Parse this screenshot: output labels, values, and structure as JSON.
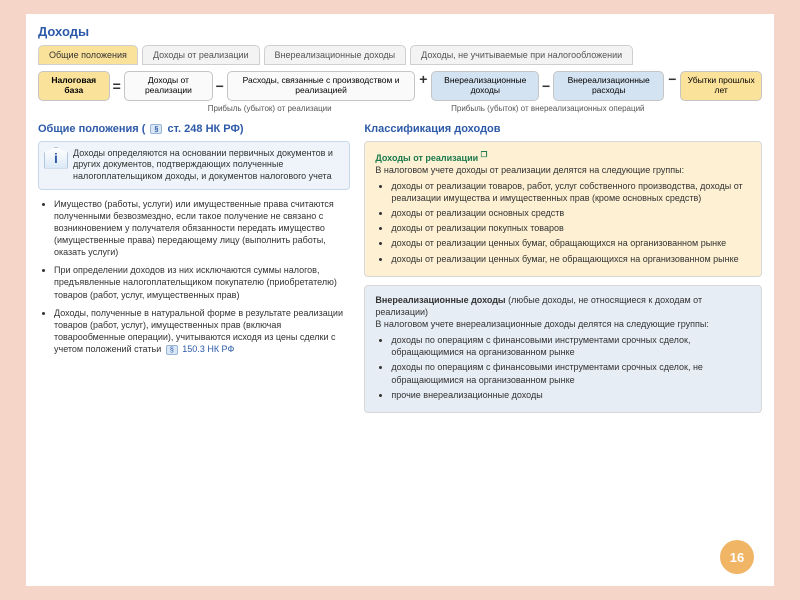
{
  "colors": {
    "page_bg": "#f5d5c8",
    "accent_blue": "#2d5aa8",
    "accent_green": "#1a7a4d",
    "tab_active_bg": "#fbe29a",
    "box_yellow": "#fbe29a",
    "box_blue": "#d4e3f2",
    "panel_yellow": "#fdf0d3",
    "panel_blue": "#e6edf5",
    "badge_bg": "#f0b565"
  },
  "title": "Доходы",
  "tabs": [
    "Общие положения",
    "Доходы от реализации",
    "Внереализационные доходы",
    "Доходы, не учитываемые при налогообложении"
  ],
  "formula": {
    "base": "Налоговая база",
    "eq": "=",
    "g1_a": "Доходы от реализации",
    "minus": "−",
    "g1_b": "Расходы, связанные с производством и реализацией",
    "g1_cap": "Прибыль (убыток) от реализации",
    "plus": "+",
    "g2_a": "Внереализационные доходы",
    "g2_b": "Внереализационные расходы",
    "g2_cap": "Прибыль (убыток) от внереализационных операций",
    "g3": "Убытки прошлых лет"
  },
  "left": {
    "heading_a": "Общие положения ( ",
    "heading_ref": "ст. 248 НК РФ",
    "heading_b": ")",
    "info": "Доходы определяются на основании первичных документов и других документов, подтверждающих полученные налогоплательщиком доходы, и документов налогового учета",
    "bullets": [
      "Имущество (работы, услуги) или имущественные права считаются полученными безвозмездно, если такое получение не связано с возникновением у получателя обязанности передать имущество (имущественные права) передающему лицу (выполнить работы, оказать услуги)",
      "При определении доходов из них исключаются суммы налогов, предъявленные налогоплательщиком покупателю (приобретателю) товаров (работ, услуг, имущественных прав)"
    ],
    "bullet3_a": "Доходы, полученные в натуральной форме в результате реализации товаров (работ, услуг), имущественных прав (включая товарообменные операции), учитываются исходя из цены сделки с учетом положений статьи ",
    "bullet3_ref": "150.3 НК РФ"
  },
  "right": {
    "heading": "Классификация доходов",
    "p1_title": "Доходы от реализации",
    "p1_intro": "В налоговом учете доходы от реализации делятся на следующие группы:",
    "p1_items": [
      "доходы от реализации товаров, работ, услуг собственного производства, доходы от реализации имущества и имущественных прав (кроме основных средств)",
      "доходы от реализации основных средств",
      "доходы от реализации покупных товаров",
      "доходы от реализации ценных бумаг, обращающихся на организованном рынке",
      "доходы от реализации ценных бумаг, не обращающихся на организованном рынке"
    ],
    "p2_title": "Внереализационные доходы",
    "p2_title_note": " (любые доходы, не относящиеся к доходам от реализации)",
    "p2_intro": "В налоговом учете внереализационные доходы делятся на следующие группы:",
    "p2_items": [
      "доходы по операциям с финансовыми инструментами срочных сделок, обращающимися на организованном рынке",
      "доходы по операциям с финансовыми инструментами срочных сделок, не обращающимися на организованном рынке",
      "прочие внереализационные доходы"
    ]
  },
  "page": "16",
  "info_icon_glyph": "i",
  "doc_icon_glyph": "§",
  "ext_icon_glyph": "❐"
}
